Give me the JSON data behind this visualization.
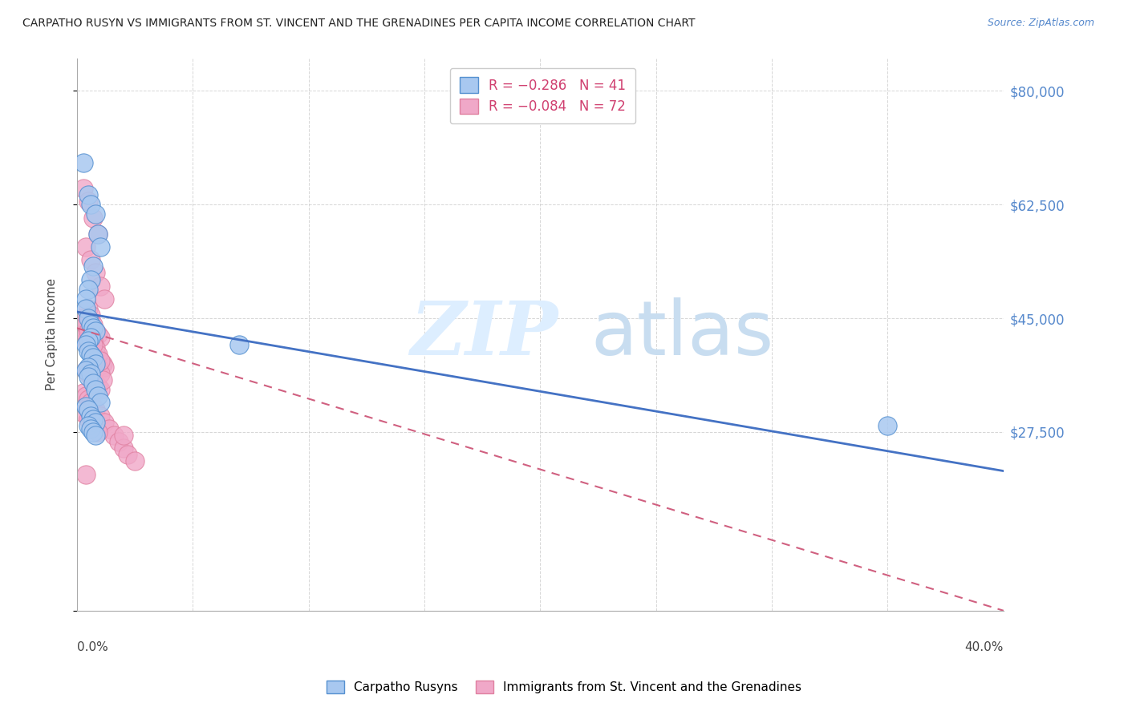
{
  "title": "CARPATHO RUSYN VS IMMIGRANTS FROM ST. VINCENT AND THE GRENADINES PER CAPITA INCOME CORRELATION CHART",
  "source": "Source: ZipAtlas.com",
  "ylabel": "Per Capita Income",
  "yticks": [
    0,
    27500,
    45000,
    62500,
    80000
  ],
  "ytick_labels": [
    "",
    "$27,500",
    "$45,000",
    "$62,500",
    "$80,000"
  ],
  "xmin": 0.0,
  "xmax": 40.0,
  "ymin": 0,
  "ymax": 85000,
  "color_blue": "#a8c8f0",
  "color_pink": "#f0a8c8",
  "color_blue_edge": "#5590d0",
  "color_pink_edge": "#e080a0",
  "color_trend_blue": "#4472c4",
  "color_trend_pink": "#d06080",
  "legend_label1": "Carpatho Rusyns",
  "legend_label2": "Immigrants from St. Vincent and the Grenadines",
  "blue_x": [
    0.3,
    0.5,
    0.6,
    0.8,
    0.9,
    1.0,
    0.7,
    0.6,
    0.5,
    0.4,
    0.4,
    0.5,
    0.6,
    0.7,
    0.8,
    0.6,
    0.5,
    0.4,
    0.5,
    0.6,
    0.7,
    0.8,
    0.5,
    0.4,
    0.6,
    0.5,
    0.7,
    0.8,
    0.9,
    1.0,
    0.4,
    0.5,
    0.6,
    0.7,
    0.8,
    0.5,
    7.0,
    0.6,
    0.7,
    0.8,
    35.0
  ],
  "blue_y": [
    69000,
    64000,
    62500,
    61000,
    58000,
    56000,
    53000,
    51000,
    49500,
    48000,
    46500,
    45000,
    44000,
    43500,
    43000,
    42000,
    41500,
    41000,
    40000,
    39500,
    39000,
    38000,
    37500,
    37000,
    36500,
    36000,
    35000,
    34000,
    33000,
    32000,
    31500,
    31000,
    30000,
    29500,
    29000,
    28500,
    41000,
    28000,
    27500,
    27000,
    28500
  ],
  "pink_x": [
    0.3,
    0.5,
    0.7,
    0.9,
    0.4,
    0.6,
    0.8,
    1.0,
    1.2,
    0.5,
    0.6,
    0.7,
    0.8,
    0.9,
    1.0,
    0.4,
    0.5,
    0.6,
    0.7,
    0.8,
    0.9,
    1.0,
    1.1,
    1.2,
    0.4,
    0.5,
    0.6,
    0.7,
    0.8,
    0.9,
    1.0,
    0.3,
    0.4,
    0.5,
    0.6,
    0.7,
    0.8,
    0.9,
    1.0,
    1.1,
    0.3,
    0.4,
    0.5,
    0.6,
    0.7,
    0.8,
    1.0,
    1.2,
    1.4,
    1.6,
    0.4,
    0.5,
    0.6,
    0.7,
    0.8,
    0.9,
    1.0,
    0.3,
    0.4,
    0.5,
    0.6,
    0.7,
    0.3,
    0.5,
    0.7,
    0.9,
    1.8,
    2.0,
    2.2,
    2.5,
    2.0,
    0.4
  ],
  "pink_y": [
    65000,
    63000,
    60500,
    58000,
    56000,
    54000,
    52000,
    50000,
    48000,
    46500,
    45500,
    44000,
    43000,
    42500,
    42000,
    41500,
    41000,
    40500,
    40000,
    39500,
    39000,
    38500,
    38000,
    37500,
    37000,
    36500,
    36000,
    35500,
    35000,
    34500,
    34000,
    43500,
    42500,
    41500,
    40500,
    39500,
    38500,
    37500,
    36500,
    35500,
    33500,
    33000,
    32500,
    32000,
    31500,
    31000,
    30000,
    29000,
    28000,
    27000,
    44500,
    43500,
    42500,
    41500,
    40500,
    39500,
    38500,
    45000,
    44000,
    43000,
    42000,
    41000,
    30500,
    29500,
    28500,
    27500,
    26000,
    25000,
    24000,
    23000,
    27000,
    21000
  ],
  "trend_blue_x0": 0.0,
  "trend_blue_y0": 46000,
  "trend_blue_x1": 40.0,
  "trend_blue_y1": 21500,
  "trend_pink_x0": 0.0,
  "trend_pink_y0": 43500,
  "trend_pink_x1": 40.0,
  "trend_pink_y1": 0
}
